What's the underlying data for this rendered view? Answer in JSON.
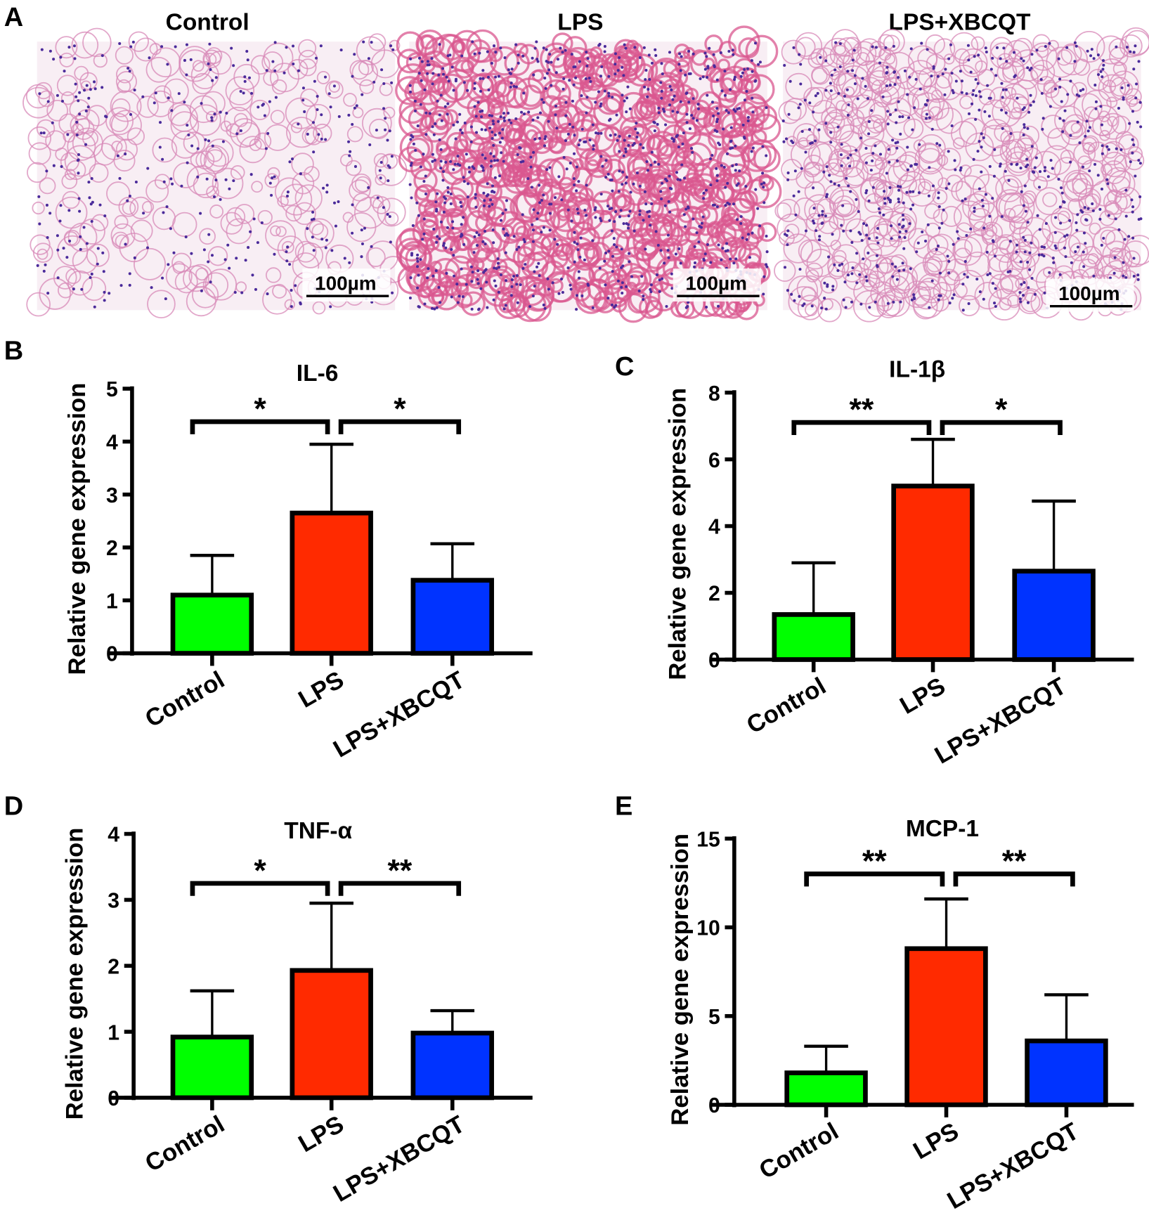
{
  "panel_letters": [
    "A",
    "B",
    "C",
    "D",
    "E"
  ],
  "micrographs": {
    "titles": [
      "Control",
      "LPS",
      "LPS+XBCQT"
    ],
    "scale_bar": "100µm"
  },
  "colors": {
    "control": "#00ff00",
    "lps": "#ff2a00",
    "xbcqt": "#0033ff"
  },
  "chart_data": [
    {
      "type": "bar",
      "title": "IL-6",
      "ylabel": "Relative gene expression",
      "categories": [
        "Control",
        "LPS",
        "LPS+XBCQT"
      ],
      "values": [
        1.1,
        2.65,
        1.38
      ],
      "errors": [
        0.75,
        1.3,
        0.69
      ],
      "ylim": [
        0,
        5
      ],
      "yticks": [
        "0",
        "1",
        "2",
        "3",
        "4",
        "5"
      ],
      "significance": [
        {
          "pair": [
            0,
            1
          ],
          "label": "*"
        },
        {
          "pair": [
            1,
            2
          ],
          "label": "*"
        }
      ]
    },
    {
      "type": "bar",
      "title": "IL-1β",
      "ylabel": "Relative gene expression",
      "categories": [
        "Control",
        "LPS",
        "LPS+XBCQT"
      ],
      "values": [
        1.35,
        5.2,
        2.65
      ],
      "errors": [
        1.55,
        1.4,
        2.1
      ],
      "ylim": [
        0,
        8
      ],
      "yticks": [
        "0",
        "2",
        "4",
        "6",
        "8"
      ],
      "significance": [
        {
          "pair": [
            0,
            1
          ],
          "label": "**"
        },
        {
          "pair": [
            1,
            2
          ],
          "label": "*"
        }
      ]
    },
    {
      "type": "bar",
      "title": "TNF-α",
      "ylabel": "Relative gene expression",
      "categories": [
        "Control",
        "LPS",
        "LPS+XBCQT"
      ],
      "values": [
        0.92,
        1.93,
        0.98
      ],
      "errors": [
        0.7,
        1.02,
        0.34
      ],
      "ylim": [
        0,
        4
      ],
      "yticks": [
        "0",
        "1",
        "2",
        "3",
        "4"
      ],
      "significance": [
        {
          "pair": [
            0,
            1
          ],
          "label": "*"
        },
        {
          "pair": [
            1,
            2
          ],
          "label": "**"
        }
      ]
    },
    {
      "type": "bar",
      "title": "MCP-1",
      "ylabel": "Relative gene expression",
      "categories": [
        "Control",
        "LPS",
        "LPS+XBCQT"
      ],
      "values": [
        1.8,
        8.8,
        3.6
      ],
      "errors": [
        1.5,
        2.8,
        2.6
      ],
      "ylim": [
        0,
        15
      ],
      "yticks": [
        "0",
        "5",
        "10",
        "15"
      ],
      "significance": [
        {
          "pair": [
            0,
            1
          ],
          "label": "**"
        },
        {
          "pair": [
            1,
            2
          ],
          "label": "**"
        }
      ]
    }
  ]
}
